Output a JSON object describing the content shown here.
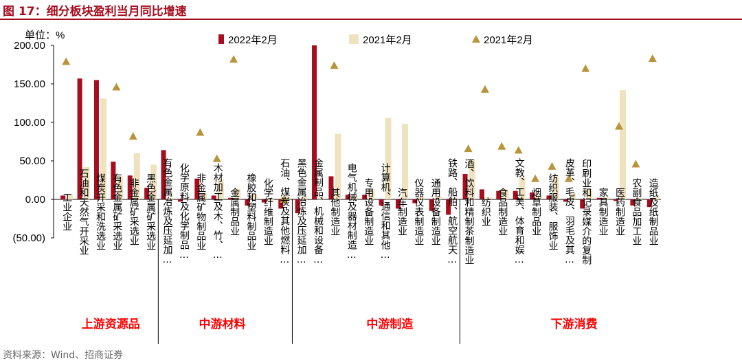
{
  "figure": {
    "title": "图 17：细分板块盈利当月同比增速",
    "source": "资料来源：Wind、招商证券"
  },
  "colors": {
    "s2022": "#a50e1f",
    "s2021": "#efe2bf",
    "tri": "#b8953d",
    "title": "#a50e1f"
  },
  "chart_data": {
    "type": "bar",
    "unit_label": "单位：%",
    "ylim": [
      -50,
      200
    ],
    "yticks": [
      -50,
      0,
      50,
      100,
      150,
      200
    ],
    "ytick_labels": [
      "(50.00)",
      "0.00",
      "50.00",
      "100.00",
      "150.00",
      "200.00"
    ],
    "grid": false,
    "legend_position": "top",
    "categories": [
      "工业企业",
      "石油和天然气开采业",
      "煤炭开采和洗选业",
      "有色金属矿采选业",
      "非金属矿采选业",
      "黑色金属矿采选业",
      "有色金属冶炼及压延加…",
      "化学原料及化学制品…",
      "非金属矿物制品业",
      "木材加工及木、竹、…",
      "金属制品业",
      "橡胶和塑料制品业",
      "化学纤维制造业",
      "石油、煤炭及其他燃料…",
      "黑色金属冶炼及压延加…",
      "金属制品、机械和设备…",
      "其他制造业",
      "电气机械及器材制造…",
      "专用设备制造业",
      "计算机、通信和其他…",
      "汽车制造业",
      "仪器仪表制造业",
      "通用设备制造业",
      "铁路、船舶、航空航天…",
      "酒、饮料和精制茶制造业",
      "纺织业",
      "食品制造业",
      "文教、工美、体育和娱…",
      "烟草制品业",
      "纺织服装、服饰业",
      "皮革、毛皮、羽毛及其…",
      "印刷业和记录媒介的复制",
      "家具制造业",
      "医药制造业",
      "农副食品加工业",
      "造纸及纸制品业"
    ],
    "series": [
      {
        "name": "2022年2月",
        "kind": "bar",
        "values": [
          5,
          157,
          155,
          49,
          31,
          15,
          64,
          -3,
          27,
          5,
          2,
          -8,
          -4,
          -12,
          -18,
          200,
          30,
          6,
          6,
          -8,
          -12,
          -5,
          -15,
          -20,
          33,
          13,
          11,
          11,
          9,
          5,
          -3,
          -12,
          2,
          -2,
          -8,
          -10
        ]
      },
      {
        "name": "2021年2月",
        "kind": "bar",
        "values": [
          6,
          42,
          131,
          30,
          60,
          45,
          2,
          2,
          8,
          26,
          14,
          7,
          -2,
          3,
          4,
          3,
          85,
          5,
          13,
          106,
          98,
          3,
          4,
          2,
          52,
          3,
          13,
          29,
          5,
          30,
          8,
          14,
          3,
          142,
          2,
          3
        ]
      },
      {
        "name": "2021年2月",
        "kind": "marker",
        "values": [
          179,
          null,
          null,
          146,
          82,
          null,
          null,
          null,
          87,
          53,
          182,
          null,
          null,
          0,
          null,
          null,
          174,
          null,
          null,
          null,
          null,
          null,
          null,
          null,
          66,
          143,
          69,
          64,
          27,
          43,
          27,
          170,
          null,
          95,
          46,
          183
        ]
      }
    ],
    "group_labels": [
      {
        "text": "上游资源品",
        "after_index": 2
      },
      {
        "text": "中游材料",
        "after_index": 9
      },
      {
        "text": "中游制造",
        "after_index": 19
      },
      {
        "text": "下游消费",
        "after_index": 30
      }
    ],
    "dividers_after_index": [
      5,
      13,
      23
    ]
  }
}
